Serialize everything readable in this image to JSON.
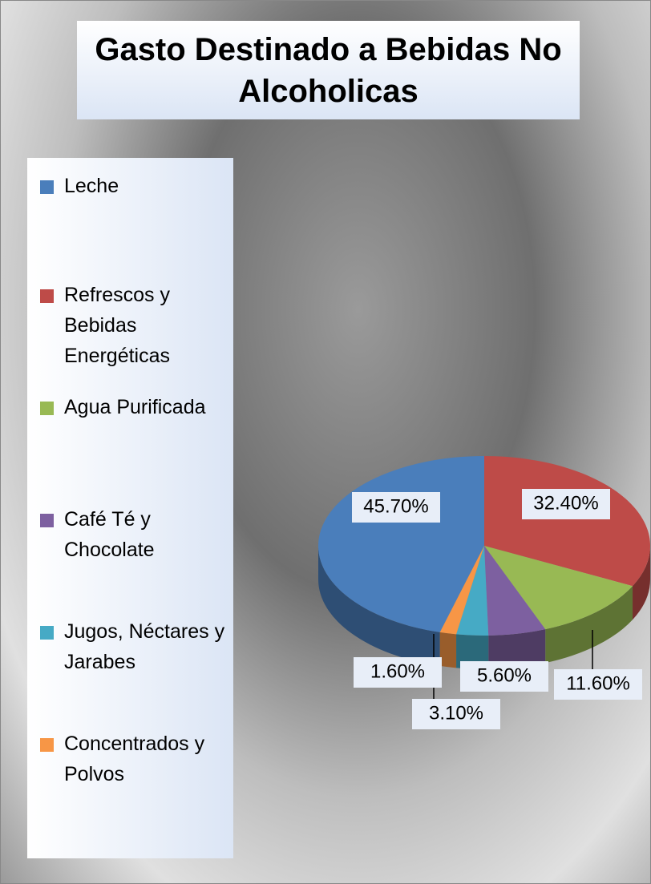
{
  "chart_data": {
    "type": "pie3d",
    "title": "Gasto Destinado a Bebidas No Alcoholicas",
    "categories": [
      "Leche",
      "Refrescos y Bebidas Energéticas",
      "Agua Purificada",
      "Café Té y Chocolate",
      "Jugos, Néctares y Jarabes",
      "Concentrados y Polvos"
    ],
    "values": [
      45.7,
      32.4,
      11.6,
      5.6,
      3.1,
      1.6
    ],
    "value_labels": [
      "45.70%",
      "32.40%",
      "11.60%",
      "5.60%",
      "3.10%",
      "1.60%"
    ],
    "colors": [
      "#4a7ebb",
      "#be4b48",
      "#98b954",
      "#7d60a0",
      "#46aac5",
      "#f79646"
    ],
    "legend": "left"
  }
}
